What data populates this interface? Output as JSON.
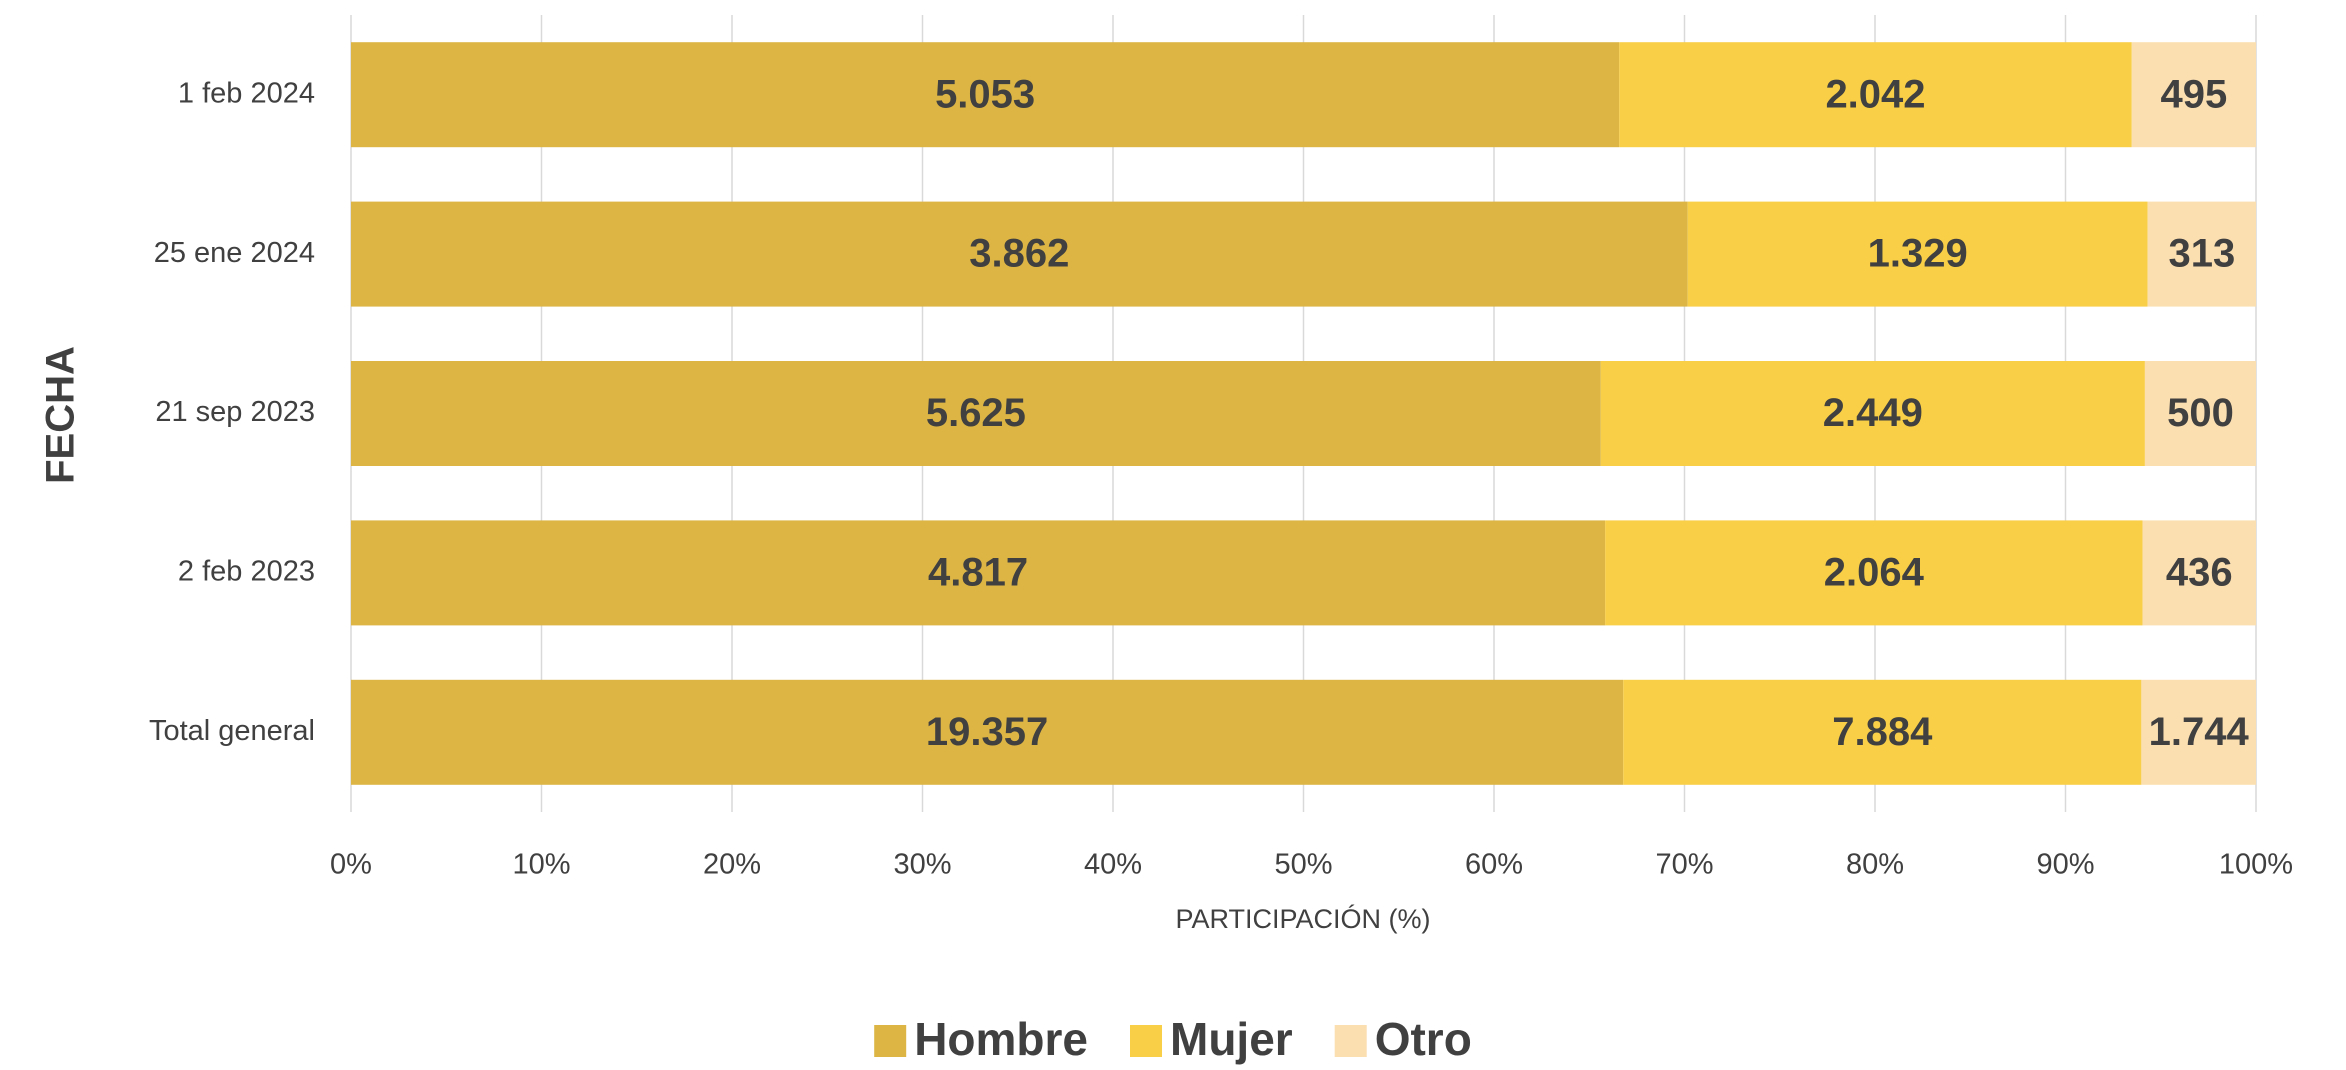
{
  "chart_data": {
    "type": "bar",
    "orientation": "horizontal",
    "stacking": "percent",
    "y_label": "FECHA",
    "x_label": "PARTICIPACIÓN (%)",
    "categories": [
      "1 feb 2024",
      "25 ene 2024",
      "21 sep 2023",
      "2 feb 2023",
      "Total general"
    ],
    "series": [
      {
        "name": "Hombre",
        "color": "#dcb545",
        "values": [
          5053,
          3862,
          5625,
          4817,
          19357
        ],
        "value_labels": [
          "5.053",
          "3.862",
          "5.625",
          "4.817",
          "19.357"
        ]
      },
      {
        "name": "Mujer",
        "color": "#f9cf47",
        "values": [
          2042,
          1329,
          2449,
          2064,
          7884
        ],
        "value_labels": [
          "2.042",
          "1.329",
          "2.449",
          "2.064",
          "7.884"
        ]
      },
      {
        "name": "Otro",
        "color": "#fbdfb1",
        "values": [
          495,
          313,
          500,
          436,
          1744
        ],
        "value_labels": [
          "495",
          "313",
          "500",
          "436",
          "1.744"
        ]
      }
    ],
    "xlim": [
      0,
      100
    ],
    "xticks": [
      {
        "value": 0,
        "label": "0%"
      },
      {
        "value": 10,
        "label": "10%"
      },
      {
        "value": 20,
        "label": "20%"
      },
      {
        "value": 30,
        "label": "30%"
      },
      {
        "value": 40,
        "label": "40%"
      },
      {
        "value": 50,
        "label": "50%"
      },
      {
        "value": 60,
        "label": "60%"
      },
      {
        "value": 70,
        "label": "70%"
      },
      {
        "value": 80,
        "label": "80%"
      },
      {
        "value": 90,
        "label": "90%"
      },
      {
        "value": 100,
        "label": "100%"
      }
    ],
    "grid": true,
    "legend": "bottom"
  }
}
